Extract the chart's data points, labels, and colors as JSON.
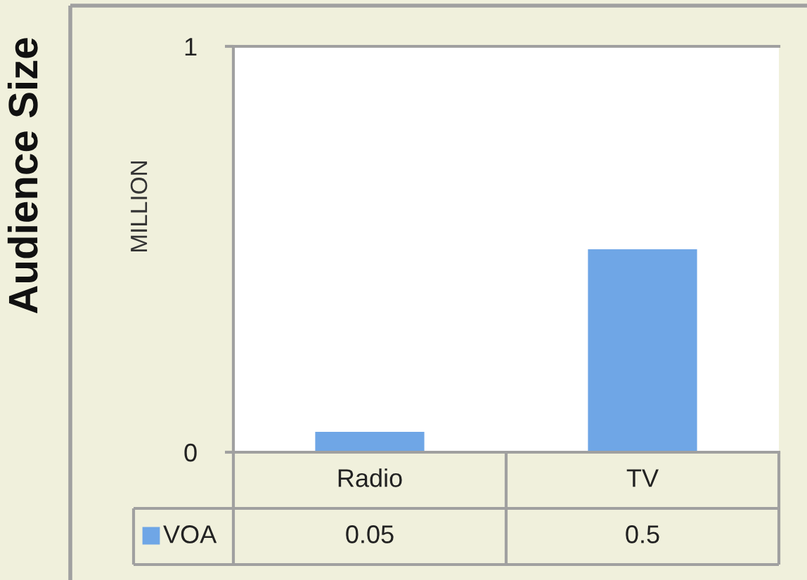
{
  "chart_data": {
    "type": "bar",
    "title": "Audience Size",
    "ylabel": "MILLION",
    "categories": [
      "Radio",
      "TV"
    ],
    "series": [
      {
        "name": "VOA",
        "color": "#6fa6e6",
        "values": [
          0.05,
          0.5
        ]
      }
    ],
    "ylim": [
      0,
      1
    ],
    "yticks": [
      0,
      1
    ],
    "data_labels": true,
    "legend": "bottom"
  }
}
